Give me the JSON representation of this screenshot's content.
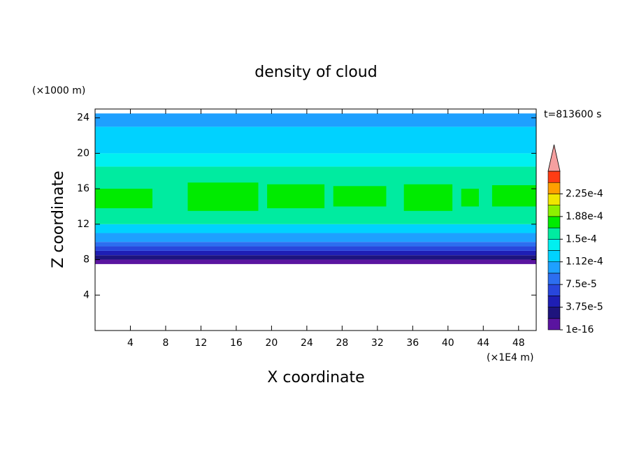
{
  "chart_data": {
    "type": "contour",
    "title": "density of cloud",
    "xlabel": "X coordinate",
    "ylabel": "Z coordinate",
    "xunit": "(×1E4 m)",
    "yunit": "(×1000 m)",
    "annotation": "t=813600 s",
    "xlim": [
      0,
      50
    ],
    "ylim": [
      0,
      25
    ],
    "xticks": [
      4,
      8,
      12,
      16,
      20,
      24,
      28,
      32,
      36,
      40,
      44,
      48
    ],
    "yticks": [
      4,
      8,
      12,
      16,
      20,
      24
    ],
    "levels": [
      1e-16,
      1.875e-05,
      3.75e-05,
      5.625e-05,
      7.5e-05,
      9.375e-05,
      0.0001125,
      0.00013125,
      0.00015,
      0.00016875,
      0.0001875,
      0.00020625,
      0.000225,
      0.00024375,
      0.0002625
    ],
    "level_colors": [
      "#5a14a0",
      "#1e147d",
      "#1e1eb4",
      "#2846dc",
      "#2c6ef0",
      "#1ea0ff",
      "#00d2ff",
      "#00f0f0",
      "#00eba0",
      "#00eb00",
      "#8cf000",
      "#f0e600",
      "#ffa000",
      "#ff3c14"
    ],
    "extend_color": "#f5a0a0",
    "colorbar_ticks": [
      {
        "value": 1e-16,
        "label": "1e-16"
      },
      {
        "value": 3.75e-05,
        "label": "3.75e-5"
      },
      {
        "value": 7.5e-05,
        "label": "7.5e-5"
      },
      {
        "value": 0.0001125,
        "label": "1.12e-4"
      },
      {
        "value": 0.00015,
        "label": "1.5e-4"
      },
      {
        "value": 0.0001875,
        "label": "1.88e-4"
      },
      {
        "value": 0.000225,
        "label": "2.25e-4"
      }
    ],
    "profile": {
      "z": [
        7.5,
        8,
        8.5,
        9,
        9.5,
        10,
        11,
        12,
        18.5,
        20,
        23,
        24.5
      ],
      "values": [
        1e-05,
        2.8e-05,
        4.6e-05,
        6.5e-05,
        8.4e-05,
        0.000103,
        0.000122,
        0.00016,
        0.00014,
        0.00012,
        0.000105
      ]
    },
    "patches": [
      {
        "x": [
          0,
          6.5
        ],
        "z": [
          13.8,
          16
        ],
        "value": 0.000178
      },
      {
        "x": [
          10.5,
          18.5
        ],
        "z": [
          13.5,
          16.7
        ],
        "value": 0.000178
      },
      {
        "x": [
          19.5,
          26
        ],
        "z": [
          13.8,
          16.5
        ],
        "value": 0.000178
      },
      {
        "x": [
          27,
          33
        ],
        "z": [
          14,
          16.3
        ],
        "value": 0.000178
      },
      {
        "x": [
          35,
          40.5
        ],
        "z": [
          13.5,
          16.5
        ],
        "value": 0.000178
      },
      {
        "x": [
          41.5,
          43.5
        ],
        "z": [
          14,
          16
        ],
        "value": 0.000178
      },
      {
        "x": [
          45,
          50
        ],
        "z": [
          14,
          16.4
        ],
        "value": 0.000178
      }
    ]
  }
}
